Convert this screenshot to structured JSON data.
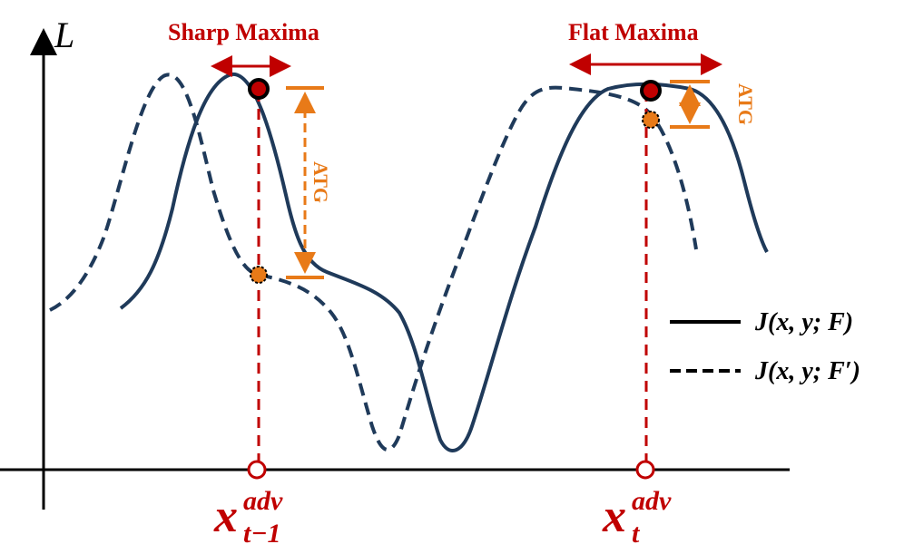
{
  "labels": {
    "y_axis": "L",
    "sharp_maxima": "Sharp Maxima",
    "flat_maxima": "Flat Maxima",
    "atg_left": "ATG",
    "atg_right": "ATG",
    "x_left_main": "x",
    "x_left_sup": "adv",
    "x_left_sub": "t−1",
    "x_right_main": "x",
    "x_right_sup": "adv",
    "x_right_sub": "t"
  },
  "legend": {
    "solid": "J(x, y; F)",
    "dashed": "J(x, y; F′)"
  },
  "colors": {
    "curve": "#1f3a5a",
    "accent_red": "#c00000",
    "accent_orange": "#e87a18",
    "axis": "#000000"
  }
}
